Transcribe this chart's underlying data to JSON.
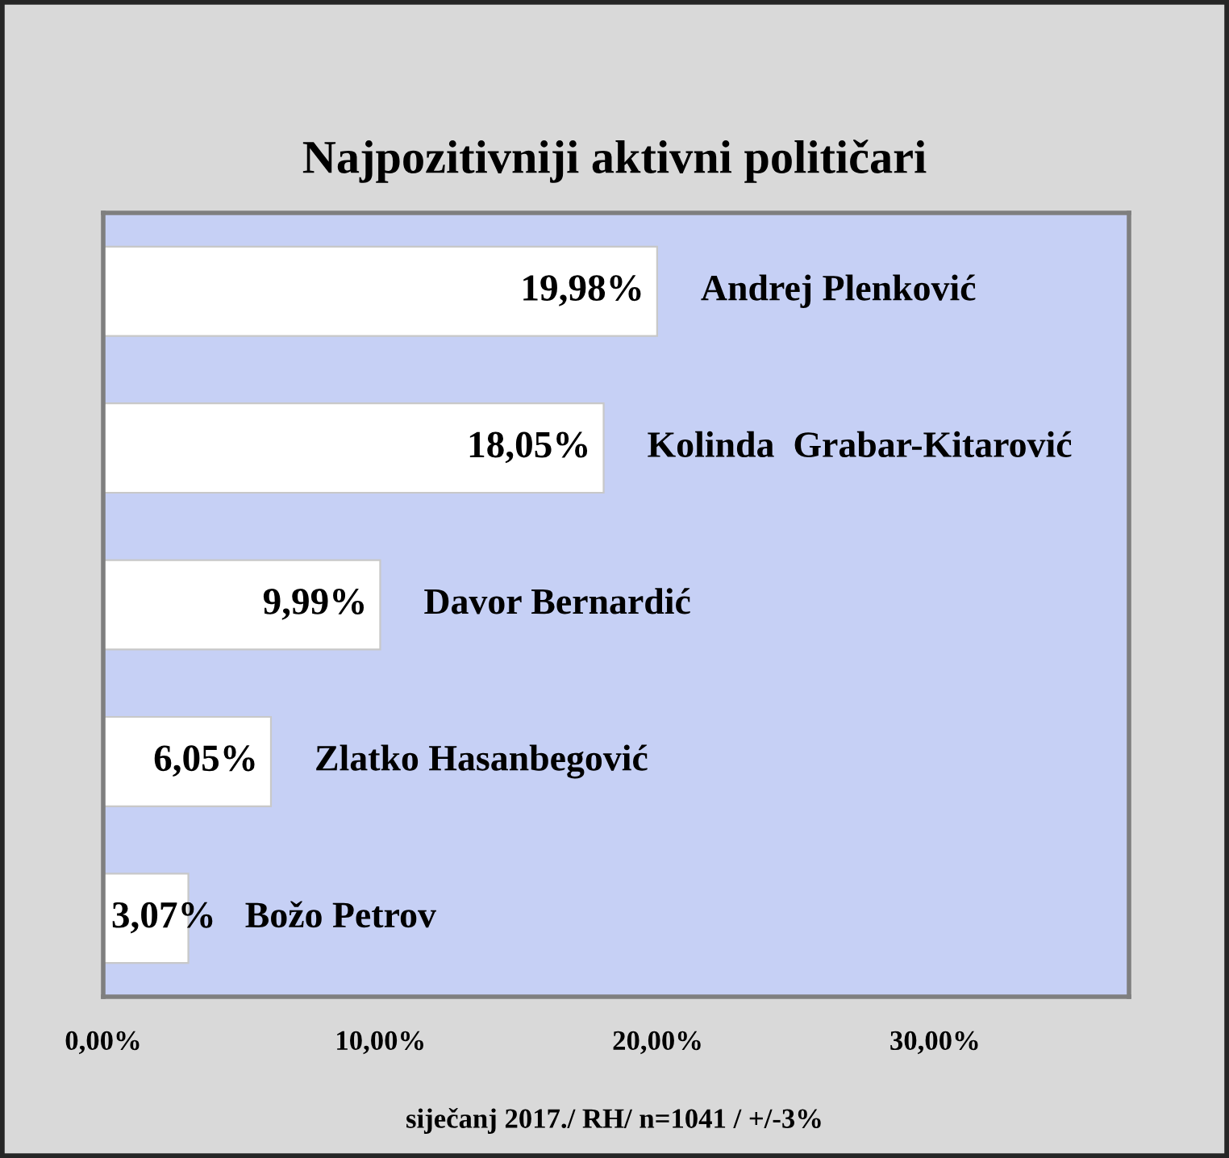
{
  "chart_data": {
    "type": "bar",
    "orientation": "horizontal",
    "title": "Najpozitivniji aktivni političari",
    "categories": [
      "Andrej Plenković",
      "Kolinda  Grabar-Kitarović",
      "Davor Bernardić",
      "Zlatko Hasanbegović",
      "Božo Petrov"
    ],
    "values": [
      19.98,
      18.05,
      9.99,
      6.05,
      3.07
    ],
    "value_labels": [
      "19,98%",
      "18,05%",
      "9,99%",
      "6,05%",
      "3,07%"
    ],
    "color": "#ffffff",
    "xlim": [
      0,
      37
    ],
    "xticks": [
      {
        "value": 0,
        "label": "0,00%"
      },
      {
        "value": 10,
        "label": "10,00%"
      },
      {
        "value": 20,
        "label": "20,00%"
      },
      {
        "value": 30,
        "label": "30,00%"
      }
    ],
    "annotations": [
      "siječanj 2017./ RH/ n=1041 / +/-3%"
    ]
  }
}
